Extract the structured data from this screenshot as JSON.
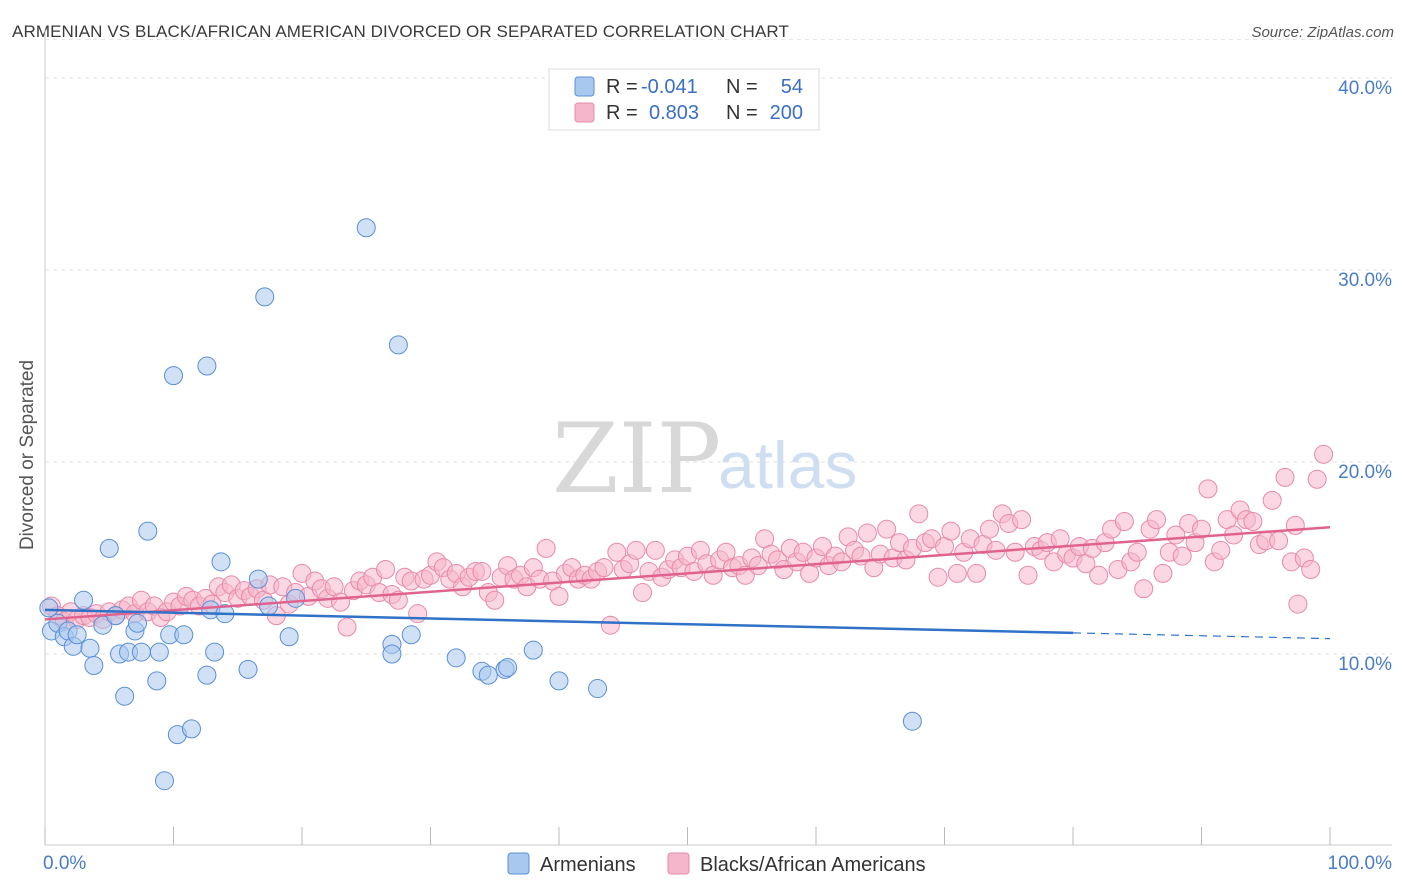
{
  "title": "ARMENIAN VS BLACK/AFRICAN AMERICAN DIVORCED OR SEPARATED CORRELATION CHART",
  "source": "Source: ZipAtlas.com",
  "watermark": {
    "zip": "ZIP",
    "atlas": "atlas"
  },
  "colors": {
    "armenian_fill": "#a9c8ef",
    "armenian_stroke": "#5b8fd6",
    "armenian_line": "#2f72c8",
    "black_fill": "#f5b6cb",
    "black_stroke": "#e88aa9",
    "black_line": "#e0638f",
    "tick_text": "#4a7cc7",
    "grid": "#e2e2e2"
  },
  "legend": {
    "rows": [
      {
        "r_label": "R =",
        "r_value": "-0.041",
        "n_label": "N =",
        "n_value": "54"
      },
      {
        "r_label": "R =",
        "r_value": "0.803",
        "n_label": "N =",
        "n_value": "200"
      }
    ]
  },
  "bottom_legend": {
    "armenians": "Armenians",
    "black": "Blacks/African Americans"
  },
  "chart_data": {
    "type": "scatter",
    "title": "ARMENIAN VS BLACK/AFRICAN AMERICAN DIVORCED OR SEPARATED CORRELATION CHART",
    "ylabel": "Divorced or Separated",
    "xlabel": "",
    "xlim": [
      0,
      100
    ],
    "ylim": [
      0,
      42
    ],
    "x_tick_labels": [
      "0.0%",
      "100.0%"
    ],
    "y_ticks": [
      10,
      20,
      30,
      40
    ],
    "y_tick_labels": [
      "10.0%",
      "20.0%",
      "30.0%",
      "40.0%"
    ],
    "grid": true,
    "legend_position": "top-center",
    "series": [
      {
        "name": "Armenians",
        "R": -0.041,
        "N": 54,
        "trend": {
          "x_start": 0,
          "y_start": 12.3,
          "x_end": 80,
          "y_end": 11.1,
          "dashed_to_x": 100,
          "dashed_to_y": 10.8
        },
        "points": [
          [
            0.3,
            12.4
          ],
          [
            0.5,
            11.2
          ],
          [
            1.0,
            11.6
          ],
          [
            1.5,
            10.9
          ],
          [
            1.8,
            11.2
          ],
          [
            2.2,
            10.4
          ],
          [
            2.5,
            11.0
          ],
          [
            3.0,
            12.8
          ],
          [
            3.5,
            10.3
          ],
          [
            3.8,
            9.4
          ],
          [
            4.5,
            11.5
          ],
          [
            5.0,
            15.5
          ],
          [
            5.5,
            12.0
          ],
          [
            5.8,
            10.0
          ],
          [
            6.2,
            7.8
          ],
          [
            6.5,
            10.1
          ],
          [
            7.0,
            11.2
          ],
          [
            7.2,
            11.6
          ],
          [
            7.5,
            10.1
          ],
          [
            8.0,
            16.4
          ],
          [
            8.7,
            8.6
          ],
          [
            8.9,
            10.1
          ],
          [
            9.3,
            3.4
          ],
          [
            9.7,
            11.0
          ],
          [
            10.0,
            24.5
          ],
          [
            10.3,
            5.8
          ],
          [
            10.8,
            11.0
          ],
          [
            11.4,
            6.1
          ],
          [
            12.6,
            25.0
          ],
          [
            12.6,
            8.9
          ],
          [
            12.9,
            12.3
          ],
          [
            13.2,
            10.1
          ],
          [
            13.7,
            14.8
          ],
          [
            14.0,
            12.1
          ],
          [
            15.8,
            9.2
          ],
          [
            16.6,
            13.9
          ],
          [
            17.1,
            28.6
          ],
          [
            17.4,
            12.5
          ],
          [
            19.0,
            10.9
          ],
          [
            19.5,
            12.9
          ],
          [
            25.0,
            32.2
          ],
          [
            27.0,
            10.5
          ],
          [
            27.0,
            10.0
          ],
          [
            27.5,
            26.1
          ],
          [
            28.5,
            11.0
          ],
          [
            32.0,
            9.8
          ],
          [
            34.0,
            9.1
          ],
          [
            34.5,
            8.9
          ],
          [
            35.8,
            9.2
          ],
          [
            36.0,
            9.3
          ],
          [
            38.0,
            10.2
          ],
          [
            40.0,
            8.6
          ],
          [
            43.0,
            8.2
          ],
          [
            67.5,
            6.5
          ]
        ]
      },
      {
        "name": "Blacks/African Americans",
        "R": 0.803,
        "N": 200,
        "trend": {
          "x_start": 0,
          "y_start": 11.8,
          "x_end": 100,
          "y_end": 16.6
        },
        "points": [
          [
            0.5,
            12.5
          ],
          [
            1.0,
            12.0
          ],
          [
            1.5,
            11.7
          ],
          [
            2.0,
            12.2
          ],
          [
            2.5,
            11.8
          ],
          [
            3.0,
            12.0
          ],
          [
            3.5,
            11.9
          ],
          [
            4.0,
            12.1
          ],
          [
            4.5,
            11.8
          ],
          [
            5.0,
            12.2
          ],
          [
            5.5,
            12.0
          ],
          [
            6.0,
            12.3
          ],
          [
            6.5,
            12.5
          ],
          [
            7.0,
            12.1
          ],
          [
            7.5,
            12.8
          ],
          [
            8.0,
            12.2
          ],
          [
            8.5,
            12.5
          ],
          [
            9.0,
            11.9
          ],
          [
            9.5,
            12.2
          ],
          [
            10.0,
            12.7
          ],
          [
            10.5,
            12.5
          ],
          [
            11.0,
            13.0
          ],
          [
            11.5,
            12.8
          ],
          [
            12.0,
            12.5
          ],
          [
            12.5,
            12.9
          ],
          [
            13.0,
            12.6
          ],
          [
            13.5,
            13.5
          ],
          [
            14.0,
            13.2
          ],
          [
            14.5,
            13.6
          ],
          [
            15.0,
            12.9
          ],
          [
            15.5,
            13.3
          ],
          [
            16.0,
            13.0
          ],
          [
            16.5,
            13.4
          ],
          [
            17.0,
            12.8
          ],
          [
            17.5,
            13.6
          ],
          [
            18.0,
            12.0
          ],
          [
            18.5,
            13.5
          ],
          [
            19.0,
            12.6
          ],
          [
            19.5,
            13.2
          ],
          [
            20.0,
            14.2
          ],
          [
            20.5,
            13.0
          ],
          [
            21.0,
            13.8
          ],
          [
            21.5,
            13.4
          ],
          [
            22.0,
            12.9
          ],
          [
            22.5,
            13.5
          ],
          [
            23.0,
            12.7
          ],
          [
            23.5,
            11.4
          ],
          [
            24.0,
            13.3
          ],
          [
            24.5,
            13.8
          ],
          [
            25.0,
            13.6
          ],
          [
            25.5,
            14.0
          ],
          [
            26.0,
            13.2
          ],
          [
            26.5,
            14.4
          ],
          [
            27.0,
            13.1
          ],
          [
            27.5,
            12.8
          ],
          [
            28.0,
            14.0
          ],
          [
            28.5,
            13.8
          ],
          [
            29.0,
            12.1
          ],
          [
            29.5,
            13.9
          ],
          [
            30.0,
            14.1
          ],
          [
            30.5,
            14.8
          ],
          [
            31.0,
            14.5
          ],
          [
            31.5,
            13.9
          ],
          [
            32.0,
            14.2
          ],
          [
            32.5,
            13.5
          ],
          [
            33.0,
            14.0
          ],
          [
            33.5,
            14.3
          ],
          [
            34.0,
            14.3
          ],
          [
            34.5,
            13.2
          ],
          [
            35.0,
            12.8
          ],
          [
            35.5,
            14.0
          ],
          [
            36.0,
            14.6
          ],
          [
            36.5,
            13.9
          ],
          [
            37.0,
            14.1
          ],
          [
            37.5,
            13.5
          ],
          [
            38.0,
            14.5
          ],
          [
            38.5,
            13.9
          ],
          [
            39.0,
            15.5
          ],
          [
            39.5,
            13.8
          ],
          [
            40.0,
            13.0
          ],
          [
            40.5,
            14.2
          ],
          [
            41.0,
            14.5
          ],
          [
            41.5,
            13.9
          ],
          [
            42.0,
            14.1
          ],
          [
            42.5,
            13.9
          ],
          [
            43.0,
            14.3
          ],
          [
            43.5,
            14.5
          ],
          [
            44.0,
            11.5
          ],
          [
            44.5,
            15.3
          ],
          [
            45.0,
            14.4
          ],
          [
            45.5,
            14.7
          ],
          [
            46.0,
            15.4
          ],
          [
            46.5,
            13.2
          ],
          [
            47.0,
            14.3
          ],
          [
            47.5,
            15.4
          ],
          [
            48.0,
            14.0
          ],
          [
            48.5,
            14.4
          ],
          [
            49.0,
            14.9
          ],
          [
            49.5,
            14.5
          ],
          [
            50.0,
            15.1
          ],
          [
            50.5,
            14.3
          ],
          [
            51.0,
            15.4
          ],
          [
            51.5,
            14.7
          ],
          [
            52.0,
            14.1
          ],
          [
            52.5,
            14.9
          ],
          [
            53.0,
            15.3
          ],
          [
            53.5,
            14.5
          ],
          [
            54.0,
            14.6
          ],
          [
            54.5,
            14.1
          ],
          [
            55.0,
            15.0
          ],
          [
            55.5,
            14.6
          ],
          [
            56.0,
            16.0
          ],
          [
            56.5,
            15.2
          ],
          [
            57.0,
            14.9
          ],
          [
            57.5,
            14.4
          ],
          [
            58.0,
            15.5
          ],
          [
            58.5,
            14.8
          ],
          [
            59.0,
            15.3
          ],
          [
            59.5,
            14.2
          ],
          [
            60.0,
            15.0
          ],
          [
            60.5,
            15.6
          ],
          [
            61.0,
            14.6
          ],
          [
            61.5,
            15.1
          ],
          [
            62.0,
            14.8
          ],
          [
            62.5,
            16.1
          ],
          [
            63.0,
            15.4
          ],
          [
            63.5,
            15.1
          ],
          [
            64.0,
            16.3
          ],
          [
            64.5,
            14.5
          ],
          [
            65.0,
            15.2
          ],
          [
            65.5,
            16.5
          ],
          [
            66.0,
            15.0
          ],
          [
            66.5,
            15.8
          ],
          [
            67.0,
            14.9
          ],
          [
            67.5,
            15.5
          ],
          [
            68.0,
            17.3
          ],
          [
            68.5,
            15.8
          ],
          [
            69.0,
            16.0
          ],
          [
            69.5,
            14.0
          ],
          [
            70.0,
            15.6
          ],
          [
            70.5,
            16.4
          ],
          [
            71.0,
            14.2
          ],
          [
            71.5,
            15.3
          ],
          [
            72.0,
            16.0
          ],
          [
            72.5,
            14.2
          ],
          [
            73.0,
            15.7
          ],
          [
            73.5,
            16.5
          ],
          [
            74.0,
            15.4
          ],
          [
            74.5,
            17.3
          ],
          [
            75.0,
            16.8
          ],
          [
            75.5,
            15.3
          ],
          [
            76.0,
            17.0
          ],
          [
            76.5,
            14.1
          ],
          [
            77.0,
            15.6
          ],
          [
            77.5,
            15.4
          ],
          [
            78.0,
            15.8
          ],
          [
            78.5,
            14.8
          ],
          [
            79.0,
            16.0
          ],
          [
            79.5,
            15.2
          ],
          [
            80.0,
            15.0
          ],
          [
            80.5,
            15.6
          ],
          [
            81.0,
            14.7
          ],
          [
            81.5,
            15.5
          ],
          [
            82.0,
            14.1
          ],
          [
            82.5,
            15.8
          ],
          [
            83.0,
            16.5
          ],
          [
            83.5,
            14.4
          ],
          [
            84.0,
            16.9
          ],
          [
            84.5,
            14.8
          ],
          [
            85.0,
            15.3
          ],
          [
            85.5,
            13.4
          ],
          [
            86.0,
            16.5
          ],
          [
            86.5,
            17.0
          ],
          [
            87.0,
            14.2
          ],
          [
            87.5,
            15.3
          ],
          [
            88.0,
            16.2
          ],
          [
            88.5,
            15.1
          ],
          [
            89.0,
            16.8
          ],
          [
            89.5,
            15.8
          ],
          [
            90.0,
            16.5
          ],
          [
            90.5,
            18.6
          ],
          [
            91.0,
            14.8
          ],
          [
            91.5,
            15.4
          ],
          [
            92.0,
            17.0
          ],
          [
            92.5,
            16.2
          ],
          [
            93.0,
            17.5
          ],
          [
            93.5,
            17.0
          ],
          [
            94.0,
            16.9
          ],
          [
            94.5,
            15.7
          ],
          [
            95.0,
            15.9
          ],
          [
            95.5,
            18.0
          ],
          [
            96.0,
            15.9
          ],
          [
            96.5,
            19.2
          ],
          [
            97.0,
            14.8
          ],
          [
            97.5,
            12.6
          ],
          [
            98.0,
            15.0
          ],
          [
            98.5,
            14.4
          ],
          [
            99.0,
            19.1
          ],
          [
            99.5,
            20.4
          ],
          [
            97.3,
            16.7
          ]
        ]
      }
    ]
  }
}
